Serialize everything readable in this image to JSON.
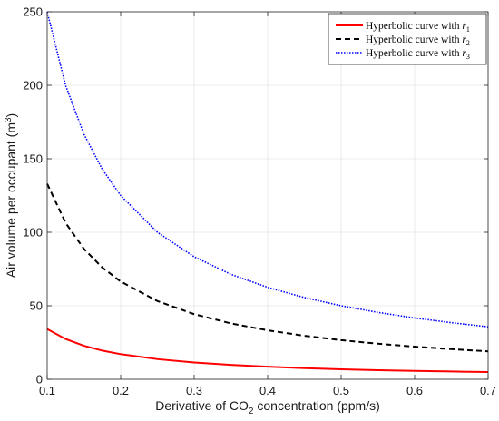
{
  "chart_data": {
    "type": "line",
    "title": "",
    "xlabel": {
      "prefix": "Derivative of CO",
      "sub": "2",
      "suffix": " concentration (ppm/s)"
    },
    "ylabel": {
      "prefix": "Air volume per occupant (m",
      "sup": "3",
      "suffix": ")"
    },
    "xlim": [
      0.1,
      0.7
    ],
    "ylim": [
      0,
      250
    ],
    "xticks": [
      "0.1",
      "0.2",
      "0.3",
      "0.4",
      "0.5",
      "0.6",
      "0.7"
    ],
    "yticks": [
      "0",
      "50",
      "100",
      "150",
      "200",
      "250"
    ],
    "grid": true,
    "legend_position": "top-right",
    "x": [
      0.1,
      0.125,
      0.15,
      0.175,
      0.2,
      0.25,
      0.3,
      0.35,
      0.4,
      0.45,
      0.5,
      0.55,
      0.6,
      0.65,
      0.7
    ],
    "series": [
      {
        "name_prefix": "Hyperbolic curve with ",
        "name_symbol": "ṙ",
        "name_sub": "1",
        "color": "#ff0000",
        "style": "solid",
        "values": [
          34.2,
          27.4,
          22.8,
          19.5,
          17.1,
          13.7,
          11.4,
          9.8,
          8.6,
          7.6,
          6.8,
          6.2,
          5.7,
          5.3,
          4.9
        ]
      },
      {
        "name_prefix": "Hyperbolic curve with ",
        "name_symbol": "ṙ",
        "name_sub": "2",
        "color": "#000000",
        "style": "dashed",
        "values": [
          133,
          106.4,
          88.7,
          76,
          66.5,
          53.2,
          44.3,
          38,
          33.3,
          29.6,
          26.6,
          24.2,
          22.2,
          20.5,
          19
        ]
      },
      {
        "name_prefix": "Hyperbolic curve with ",
        "name_symbol": "ṙ",
        "name_sub": "3",
        "color": "#0000ff",
        "style": "dotted",
        "values": [
          250,
          200,
          166.7,
          142.9,
          125,
          100,
          83.3,
          71.4,
          62.5,
          55.6,
          50,
          45.5,
          41.7,
          38.5,
          35.7
        ]
      }
    ]
  }
}
